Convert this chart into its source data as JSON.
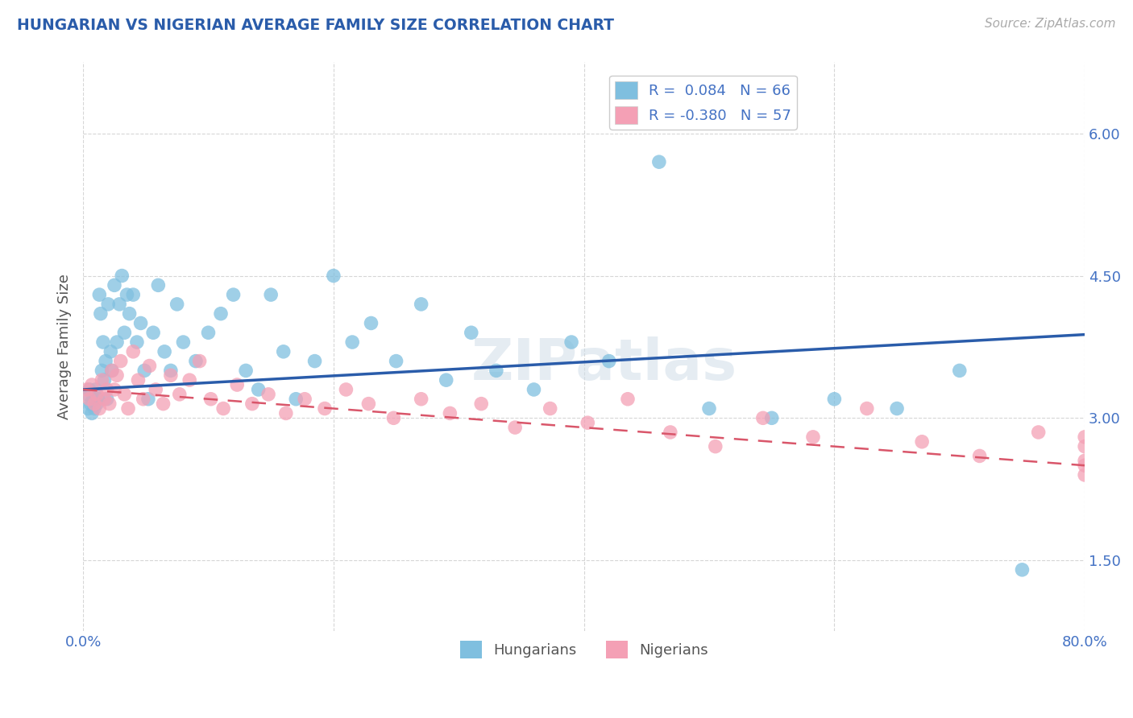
{
  "title": "HUNGARIAN VS NIGERIAN AVERAGE FAMILY SIZE CORRELATION CHART",
  "source_text": "Source: ZipAtlas.com",
  "ylabel": "Average Family Size",
  "xmin": 0.0,
  "xmax": 0.8,
  "ymin": 0.75,
  "ymax": 6.75,
  "yticks": [
    1.5,
    3.0,
    4.5,
    6.0
  ],
  "legend_blue_r": "R =  0.084",
  "legend_blue_n": "N = 66",
  "legend_pink_r": "R = -0.380",
  "legend_pink_n": "N = 57",
  "blue_color": "#7fbfdf",
  "pink_color": "#f4a0b5",
  "trend_blue_color": "#2a5caa",
  "trend_pink_color": "#d9566a",
  "title_color": "#2a5caa",
  "axis_color": "#4472c4",
  "tick_color": "#4472c4",
  "background_color": "#ffffff",
  "watermark_text": "ZIPatlas",
  "trend_blue_x0": 0.0,
  "trend_blue_y0": 3.3,
  "trend_blue_x1": 0.8,
  "trend_blue_y1": 3.88,
  "trend_pink_x0": 0.0,
  "trend_pink_y0": 3.3,
  "trend_pink_x1": 0.8,
  "trend_pink_y1": 2.5,
  "hungarian_x": [
    0.003,
    0.004,
    0.005,
    0.006,
    0.007,
    0.008,
    0.009,
    0.01,
    0.011,
    0.012,
    0.013,
    0.014,
    0.015,
    0.016,
    0.017,
    0.018,
    0.019,
    0.02,
    0.022,
    0.023,
    0.025,
    0.027,
    0.029,
    0.031,
    0.033,
    0.035,
    0.037,
    0.04,
    0.043,
    0.046,
    0.049,
    0.052,
    0.056,
    0.06,
    0.065,
    0.07,
    0.075,
    0.08,
    0.09,
    0.1,
    0.11,
    0.12,
    0.13,
    0.14,
    0.15,
    0.16,
    0.17,
    0.185,
    0.2,
    0.215,
    0.23,
    0.25,
    0.27,
    0.29,
    0.31,
    0.33,
    0.36,
    0.39,
    0.42,
    0.46,
    0.5,
    0.55,
    0.6,
    0.65,
    0.7,
    0.75
  ],
  "hungarian_y": [
    3.25,
    3.1,
    3.3,
    3.15,
    3.05,
    3.2,
    3.1,
    3.3,
    3.15,
    3.2,
    4.3,
    4.1,
    3.5,
    3.8,
    3.4,
    3.6,
    3.2,
    4.2,
    3.7,
    3.5,
    4.4,
    3.8,
    4.2,
    4.5,
    3.9,
    4.3,
    4.1,
    4.3,
    3.8,
    4.0,
    3.5,
    3.2,
    3.9,
    4.4,
    3.7,
    3.5,
    4.2,
    3.8,
    3.6,
    3.9,
    4.1,
    4.3,
    3.5,
    3.3,
    4.3,
    3.7,
    3.2,
    3.6,
    4.5,
    3.8,
    4.0,
    3.6,
    4.2,
    3.4,
    3.9,
    3.5,
    3.3,
    3.8,
    3.6,
    5.7,
    3.1,
    3.0,
    3.2,
    3.1,
    3.5,
    1.4
  ],
  "nigerian_x": [
    0.003,
    0.005,
    0.007,
    0.009,
    0.011,
    0.013,
    0.015,
    0.017,
    0.019,
    0.021,
    0.023,
    0.025,
    0.027,
    0.03,
    0.033,
    0.036,
    0.04,
    0.044,
    0.048,
    0.053,
    0.058,
    0.064,
    0.07,
    0.077,
    0.085,
    0.093,
    0.102,
    0.112,
    0.123,
    0.135,
    0.148,
    0.162,
    0.177,
    0.193,
    0.21,
    0.228,
    0.248,
    0.27,
    0.293,
    0.318,
    0.345,
    0.373,
    0.403,
    0.435,
    0.469,
    0.505,
    0.543,
    0.583,
    0.626,
    0.67,
    0.716,
    0.763,
    0.81,
    0.858,
    0.907,
    0.957,
    1.008
  ],
  "nigerian_y": [
    3.3,
    3.2,
    3.35,
    3.15,
    3.25,
    3.1,
    3.4,
    3.2,
    3.3,
    3.15,
    3.5,
    3.3,
    3.45,
    3.6,
    3.25,
    3.1,
    3.7,
    3.4,
    3.2,
    3.55,
    3.3,
    3.15,
    3.45,
    3.25,
    3.4,
    3.6,
    3.2,
    3.1,
    3.35,
    3.15,
    3.25,
    3.05,
    3.2,
    3.1,
    3.3,
    3.15,
    3.0,
    3.2,
    3.05,
    3.15,
    2.9,
    3.1,
    2.95,
    3.2,
    2.85,
    2.7,
    3.0,
    2.8,
    3.1,
    2.75,
    2.6,
    2.85,
    2.55,
    2.7,
    2.8,
    2.5,
    2.4
  ]
}
